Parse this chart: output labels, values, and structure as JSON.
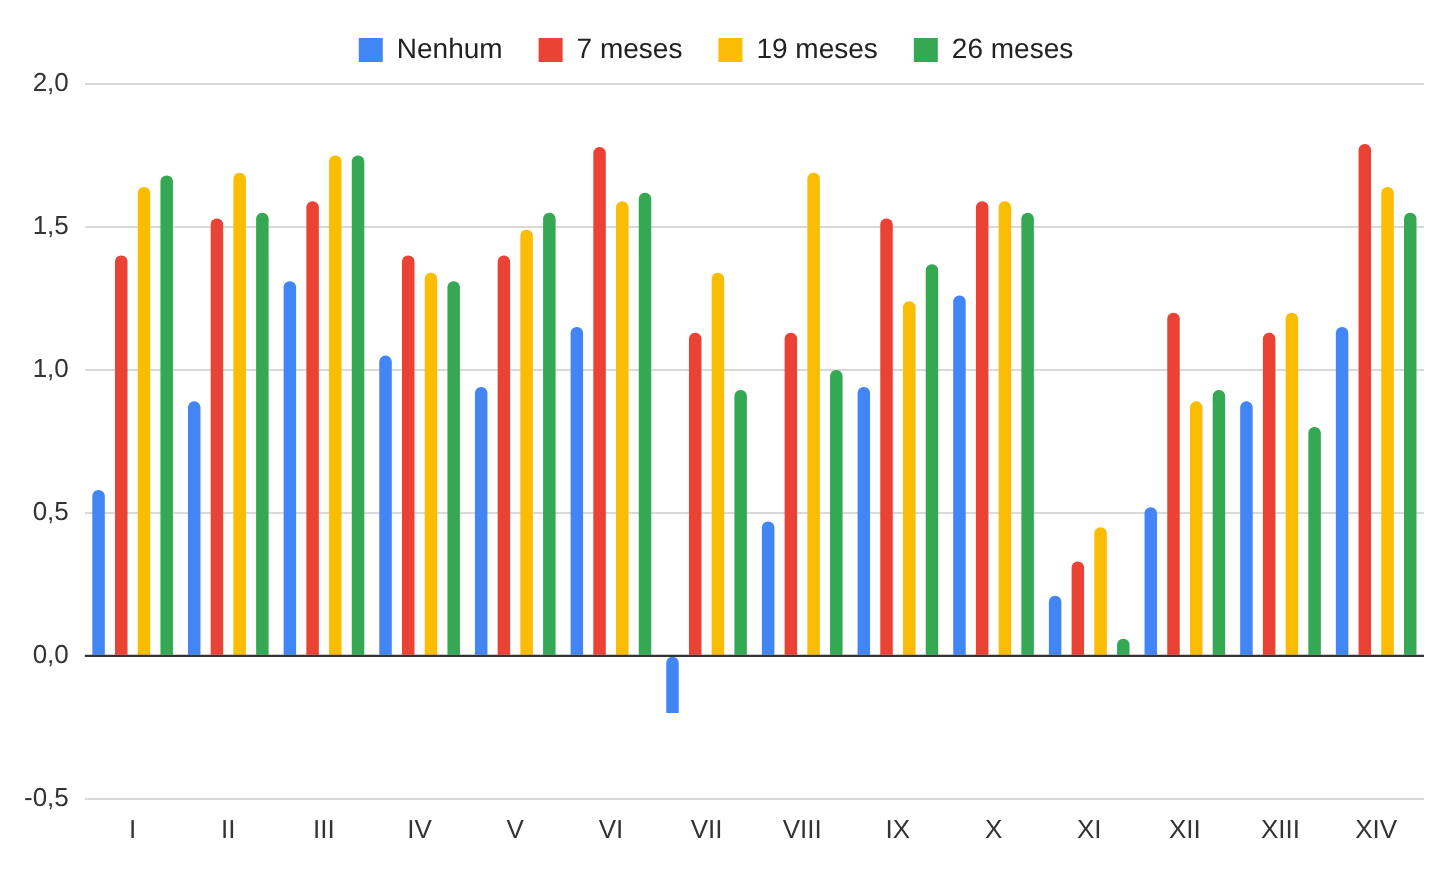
{
  "chart_data": {
    "type": "bar",
    "categories": [
      "I",
      "II",
      "III",
      "IV",
      "V",
      "VI",
      "VII",
      "VIII",
      "IX",
      "X",
      "XI",
      "XII",
      "XIII",
      "XIV"
    ],
    "series": [
      {
        "name": "Nenhum",
        "color": "#4285f4",
        "values": [
          0.58,
          0.89,
          1.31,
          1.05,
          0.94,
          1.15,
          -0.2,
          0.47,
          0.94,
          1.26,
          0.21,
          0.52,
          0.89,
          1.15
        ]
      },
      {
        "name": "7 meses",
        "color": "#ea4335",
        "values": [
          1.4,
          1.53,
          1.59,
          1.4,
          1.4,
          1.78,
          1.13,
          1.13,
          1.53,
          1.59,
          0.33,
          1.2,
          1.13,
          1.79
        ]
      },
      {
        "name": "19 meses",
        "color": "#fbbc04",
        "values": [
          1.64,
          1.69,
          1.75,
          1.34,
          1.49,
          1.59,
          1.34,
          1.69,
          1.24,
          1.59,
          0.45,
          0.89,
          1.2,
          1.64
        ]
      },
      {
        "name": "26 meses",
        "color": "#34a853",
        "values": [
          1.68,
          1.55,
          1.75,
          1.31,
          1.55,
          1.62,
          0.93,
          1.0,
          1.37,
          1.55,
          0.06,
          0.93,
          0.8,
          1.55
        ]
      }
    ],
    "ylim": [
      -0.5,
      2.0
    ],
    "yticks": [
      {
        "value": -0.5,
        "label": "-0,5"
      },
      {
        "value": 0,
        "label": "0,0"
      },
      {
        "value": 0.5,
        "label": "0,5"
      },
      {
        "value": 1,
        "label": "1,0"
      },
      {
        "value": 1.5,
        "label": "1,5"
      },
      {
        "value": 2,
        "label": "2,0"
      }
    ],
    "grid": "y",
    "legend": "top"
  }
}
